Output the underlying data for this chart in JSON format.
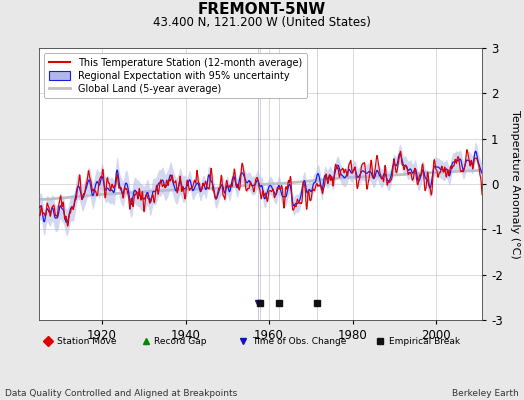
{
  "title": "FREMONT-5NW",
  "subtitle": "43.400 N, 121.200 W (United States)",
  "ylabel": "Temperature Anomaly (°C)",
  "xlabel_left": "Data Quality Controlled and Aligned at Breakpoints",
  "xlabel_right": "Berkeley Earth",
  "ylim": [
    -3,
    3
  ],
  "xlim": [
    1905,
    2011
  ],
  "xticks": [
    1920,
    1940,
    1960,
    1980,
    2000
  ],
  "yticks": [
    -3,
    -2,
    -1,
    0,
    1,
    2,
    3
  ],
  "legend_station": "This Temperature Station (12-month average)",
  "legend_regional": "Regional Expectation with 95% uncertainty",
  "legend_global": "Global Land (5-year average)",
  "obs_changes": [
    1957.3
  ],
  "empirical_breaks": [
    1957.8,
    1962.5,
    1971.5
  ],
  "background_color": "#e8e8e8",
  "plot_bg_color": "#ffffff",
  "seed": 42
}
